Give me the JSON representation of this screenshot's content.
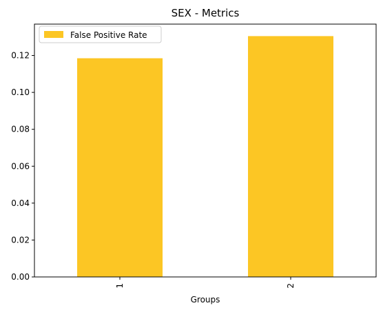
{
  "chart_data": {
    "type": "bar",
    "title": "SEX - Metrics",
    "xlabel": "Groups",
    "ylabel": "",
    "categories": [
      "1",
      "2"
    ],
    "series": [
      {
        "name": "False Positive Rate",
        "values": [
          0.1185,
          0.1305
        ],
        "color": "#fcc624"
      }
    ],
    "ylim": [
      0,
      0.137
    ],
    "yticks": [
      0.0,
      0.02,
      0.04,
      0.06,
      0.08,
      0.1,
      0.12
    ],
    "ytick_labels": [
      "0.00",
      "0.02",
      "0.04",
      "0.06",
      "0.08",
      "0.10",
      "0.12"
    ],
    "xtick_rotation": "vertical",
    "grid": false,
    "legend_position": "upper-left"
  }
}
